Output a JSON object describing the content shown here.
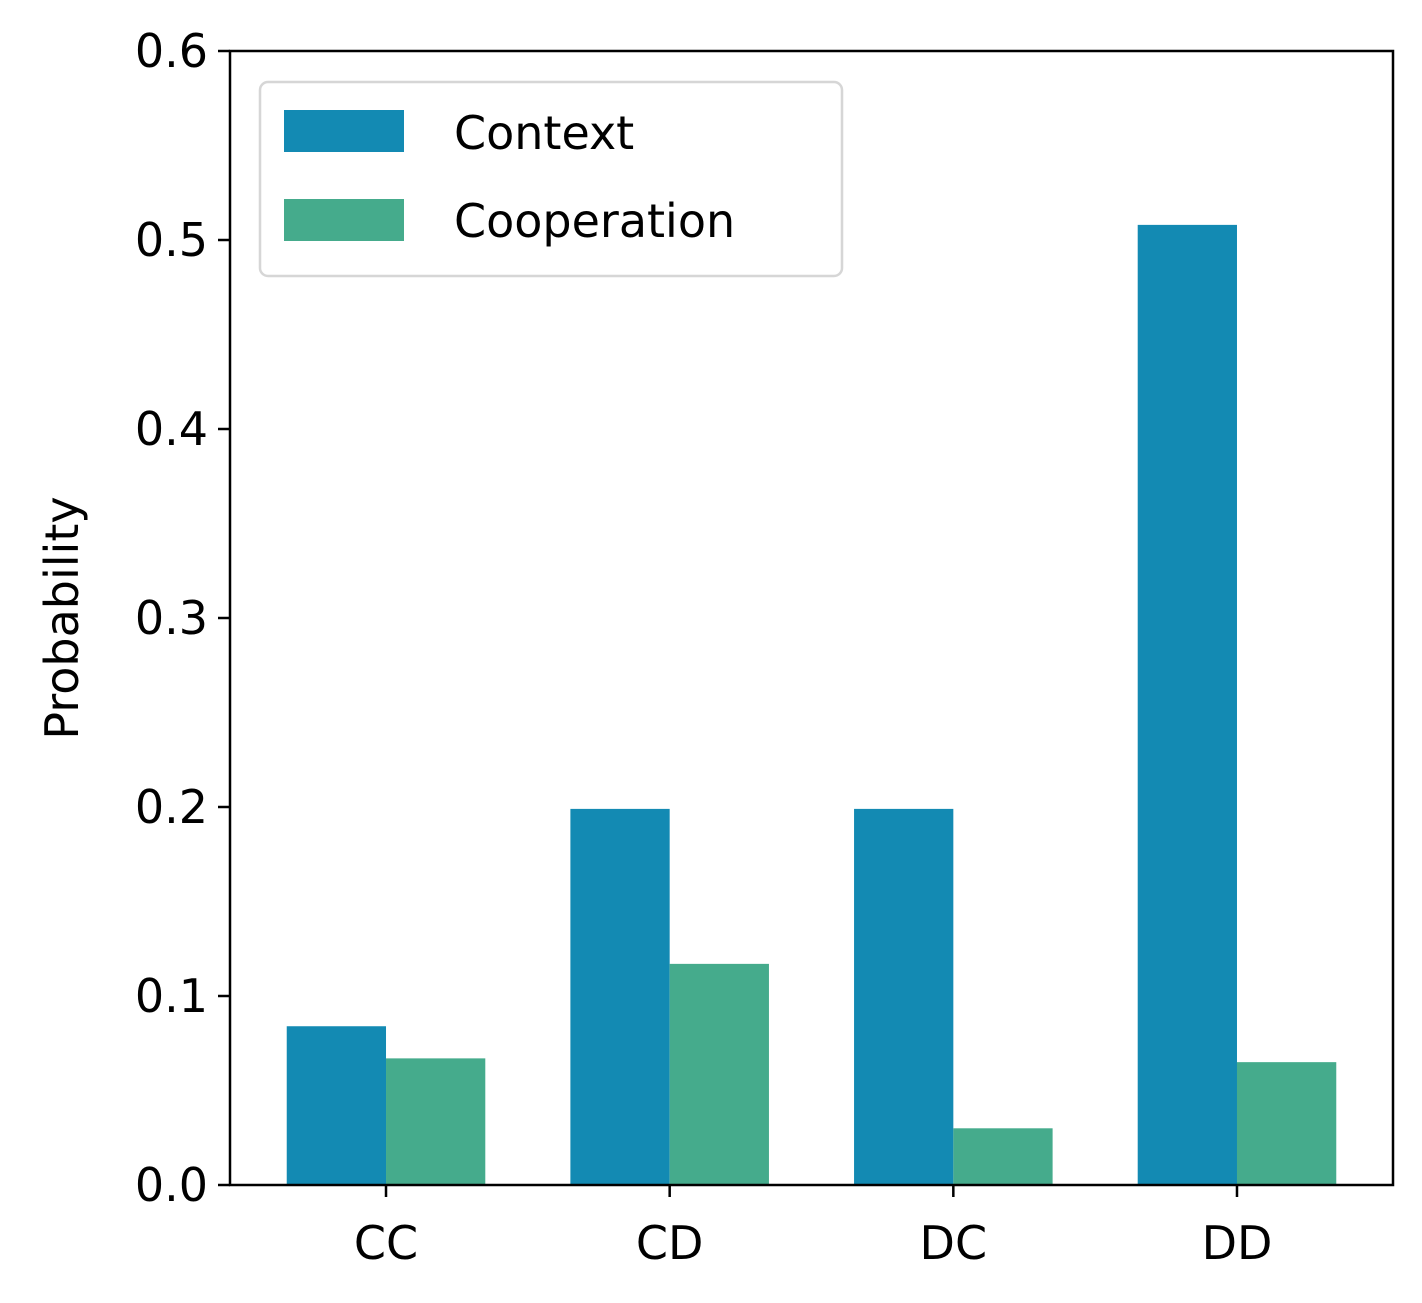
{
  "chart_data": {
    "type": "bar",
    "title": "",
    "xlabel": "",
    "ylabel": "Probability",
    "categories": [
      "CC",
      "CD",
      "DC",
      "DD"
    ],
    "series": [
      {
        "name": "Context",
        "color": "#138ab3",
        "values": [
          0.084,
          0.199,
          0.199,
          0.508
        ]
      },
      {
        "name": "Cooperation",
        "color": "#45ab8c",
        "values": [
          0.067,
          0.117,
          0.03,
          0.065
        ]
      }
    ],
    "ylim": [
      0,
      0.6
    ],
    "yticks": [
      "0.0",
      "0.1",
      "0.2",
      "0.3",
      "0.4",
      "0.5",
      "0.6"
    ],
    "grid": false,
    "legend_position": "top-left"
  }
}
